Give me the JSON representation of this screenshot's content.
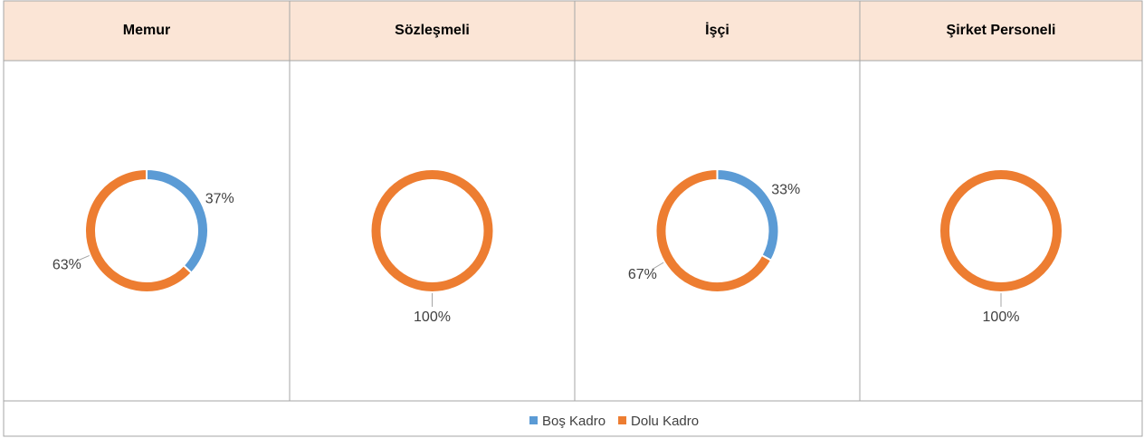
{
  "chart_data": [
    {
      "type": "donut",
      "title": "Memur",
      "categories": [
        "Boş Kadro",
        "Dolu Kadro"
      ],
      "values": [
        37,
        63
      ],
      "colors": [
        "#5b9bd5",
        "#ed7d31"
      ]
    },
    {
      "type": "donut",
      "title": "Sözleşmeli",
      "categories": [
        "Boş Kadro",
        "Dolu Kadro"
      ],
      "values": [
        0,
        100
      ],
      "colors": [
        "#5b9bd5",
        "#ed7d31"
      ]
    },
    {
      "type": "donut",
      "title": "İşçi",
      "categories": [
        "Boş Kadro",
        "Dolu Kadro"
      ],
      "values": [
        33,
        67
      ],
      "colors": [
        "#5b9bd5",
        "#ed7d31"
      ]
    },
    {
      "type": "donut",
      "title": "Şirket Personeli",
      "categories": [
        "Boş Kadro",
        "Dolu Kadro"
      ],
      "values": [
        0,
        100
      ],
      "colors": [
        "#5b9bd5",
        "#ed7d31"
      ]
    }
  ]
}
